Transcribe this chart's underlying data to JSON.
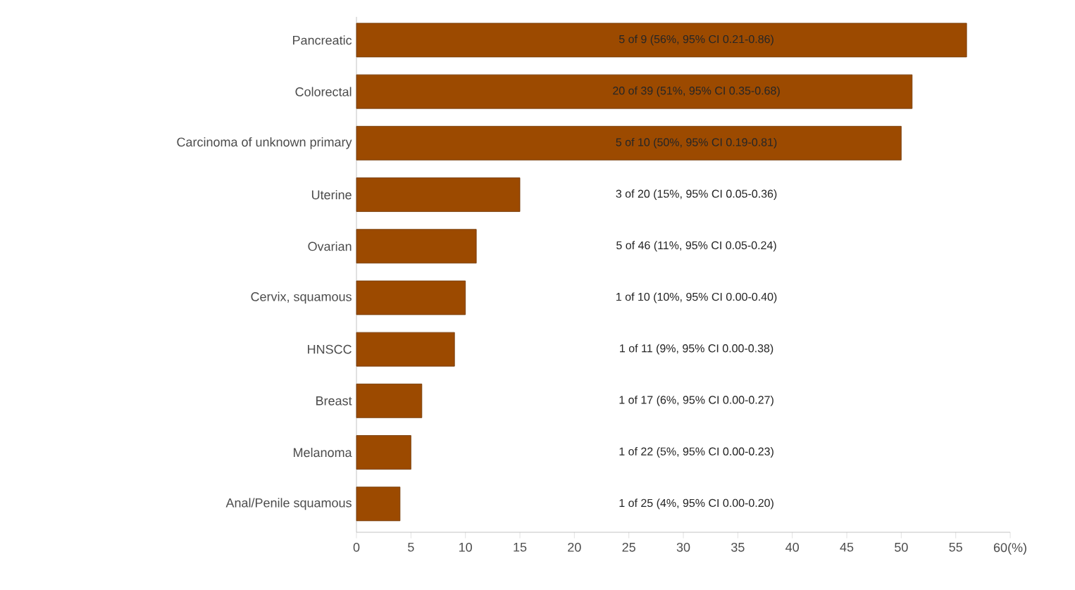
{
  "chart_data": {
    "type": "bar",
    "orientation": "horizontal",
    "categories": [
      "Pancreatic",
      "Colorectal",
      "Carcinoma of unknown primary",
      "Uterine",
      "Ovarian",
      "Cervix, squamous",
      "HNSCC",
      "Breast",
      "Melanoma",
      "Anal/Penile squamous"
    ],
    "values": [
      56,
      51,
      50,
      15,
      11,
      10,
      9,
      6,
      5,
      4
    ],
    "color": "#9c4a00",
    "value_labels": [
      "5 of 9 (56%, 95% CI 0.21-0.86)",
      "20 of 39 (51%, 95% CI 0.35-0.68)",
      "5 of 10 (50%, 95% CI 0.19-0.81)",
      "3 of 20 (15%, 95% CI 0.05-0.36)",
      "5 of 46 (11%, 95% CI 0.05-0.24)",
      "1 of 10 (10%, 95% CI 0.00-0.40)",
      "1 of 11 (9%, 95% CI 0.00-0.38)",
      "1 of 17 (6%, 95% CI 0.00-0.27)",
      "1 of 22 (5%, 95% CI 0.00-0.23)",
      "1 of 25 (4%, 95% CI 0.00-0.20)"
    ],
    "xlim": [
      0,
      60
    ],
    "xticks": [
      0,
      5,
      10,
      15,
      20,
      25,
      30,
      35,
      40,
      45,
      50,
      55,
      {
        "value": 60,
        "label": "60(%)"
      }
    ],
    "grid": false
  }
}
